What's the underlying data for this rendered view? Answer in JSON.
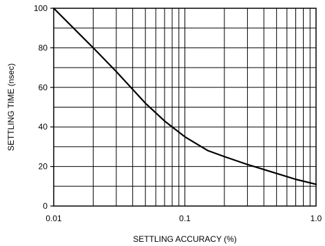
{
  "chart_data": {
    "type": "line",
    "title": "",
    "xlabel": "SETTLING ACCURACY (%)",
    "ylabel": "SETTLING TIME (nsec)",
    "xscale": "log",
    "xlim": [
      0.01,
      1.0
    ],
    "ylim": [
      0,
      100
    ],
    "grid": true,
    "x_tick_labels": [
      {
        "value": 0.01,
        "label": "0.01"
      },
      {
        "value": 0.1,
        "label": "0.1"
      },
      {
        "value": 1.0,
        "label": "1.0"
      }
    ],
    "y_tick_labels": [
      {
        "value": 0,
        "label": "0"
      },
      {
        "value": 20,
        "label": "20"
      },
      {
        "value": 40,
        "label": "40"
      },
      {
        "value": 60,
        "label": "60"
      },
      {
        "value": 80,
        "label": "80"
      },
      {
        "value": 100,
        "label": "100"
      }
    ],
    "series": [
      {
        "x": [
          0.01,
          0.02,
          0.03,
          0.05,
          0.07,
          0.1,
          0.15,
          0.2,
          0.3,
          0.5,
          0.7,
          1.0
        ],
        "y": [
          100,
          80,
          68,
          52,
          43,
          35,
          28,
          25,
          21,
          16.5,
          13.5,
          11
        ]
      }
    ],
    "colors": {
      "line": "#000000",
      "grid": "#000000",
      "background": "#ffffff"
    }
  }
}
